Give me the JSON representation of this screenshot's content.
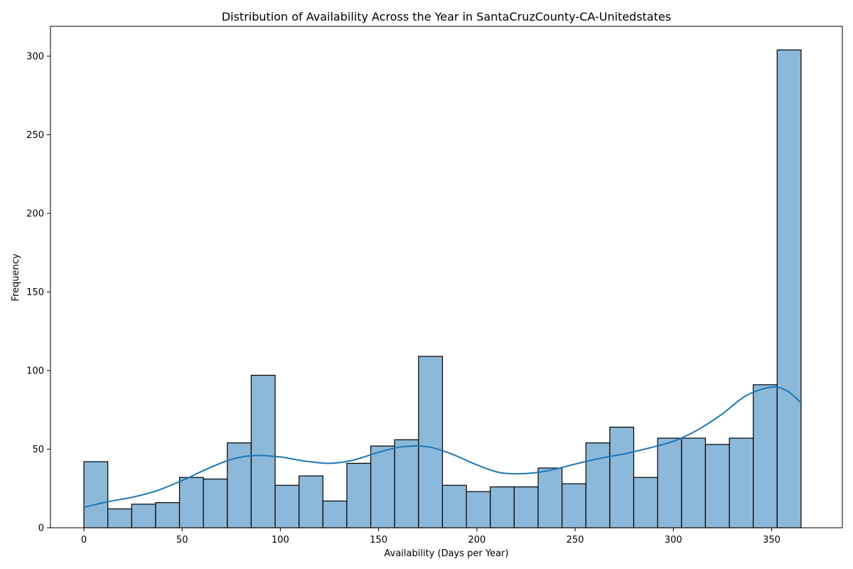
{
  "chart_data": {
    "type": "bar",
    "title": "Distribution of Availability Across the Year in SantaCruzCounty-CA-Unitedstates",
    "xlabel": "Availability (Days per Year)",
    "ylabel": "Frequency",
    "xlim": [
      -17,
      386
    ],
    "ylim": [
      0,
      319
    ],
    "xticks": [
      0,
      50,
      100,
      150,
      200,
      250,
      300,
      350
    ],
    "yticks": [
      0,
      50,
      100,
      150,
      200,
      250,
      300
    ],
    "grid": false,
    "bin_start": 0,
    "bin_end": 365,
    "bins": 30,
    "values": [
      42,
      12,
      15,
      16,
      32,
      31,
      54,
      97,
      27,
      33,
      17,
      41,
      52,
      56,
      109,
      27,
      23,
      26,
      26,
      38,
      28,
      54,
      64,
      32,
      57,
      57,
      53,
      57,
      91,
      304
    ],
    "kde": {
      "x": [
        0,
        12,
        25,
        37,
        50,
        62,
        75,
        87,
        100,
        112,
        125,
        137,
        150,
        162,
        175,
        187,
        200,
        212,
        225,
        237,
        250,
        262,
        275,
        287,
        300,
        312,
        325,
        337,
        350,
        358,
        365
      ],
      "y": [
        13,
        16.5,
        19.5,
        23.5,
        30,
        37,
        43.5,
        46,
        45,
        42.5,
        41,
        43,
        48,
        51.5,
        51.5,
        47,
        40,
        35,
        34.5,
        36.5,
        40.5,
        44,
        47,
        50.5,
        55,
        62,
        72.5,
        84,
        89.5,
        87,
        79.5
      ]
    },
    "bar_color": "#8cb8d9",
    "bar_edge_color": "#000000",
    "kde_color": "#1f77b4"
  }
}
